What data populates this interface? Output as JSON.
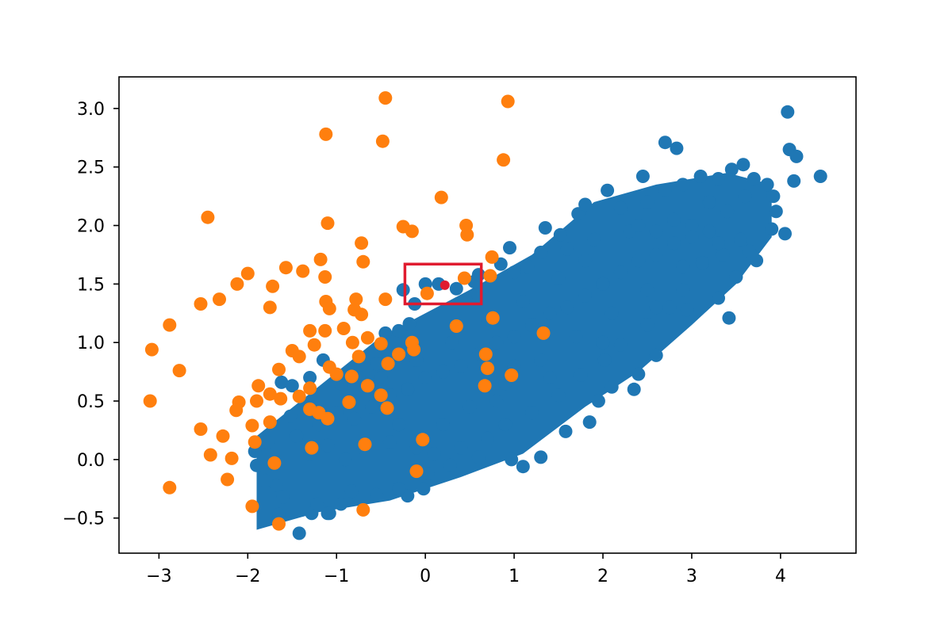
{
  "chart_data": {
    "type": "scatter",
    "title": "",
    "xlabel": "",
    "ylabel": "",
    "xlim": [
      -3.45,
      4.85
    ],
    "ylim": [
      -0.8,
      3.27
    ],
    "xticks": [
      -3,
      -2,
      -1,
      0,
      1,
      2,
      3,
      4
    ],
    "xtick_labels": [
      "−3",
      "−2",
      "−1",
      "0",
      "1",
      "2",
      "3",
      "4"
    ],
    "yticks": [
      -0.5,
      0.0,
      0.5,
      1.0,
      1.5,
      2.0,
      2.5,
      3.0
    ],
    "ytick_labels": [
      "−0.5",
      "0.0",
      "0.5",
      "1.0",
      "1.5",
      "2.0",
      "2.5",
      "3.0"
    ],
    "grid": false,
    "series": [
      {
        "color": "#1f77b4",
        "points": [
          [
            4.08,
            2.97
          ],
          [
            4.45,
            2.42
          ],
          [
            4.1,
            2.65
          ],
          [
            4.18,
            2.59
          ],
          [
            4.15,
            2.38
          ],
          [
            2.7,
            2.71
          ],
          [
            2.83,
            2.66
          ],
          [
            2.45,
            2.42
          ],
          [
            4.05,
            1.93
          ],
          [
            3.9,
            1.97
          ],
          [
            3.73,
            1.7
          ],
          [
            3.42,
            1.21
          ],
          [
            3.5,
            1.56
          ],
          [
            3.3,
            1.38
          ],
          [
            2.95,
            1.28
          ],
          [
            2.6,
            0.89
          ],
          [
            2.4,
            0.73
          ],
          [
            2.35,
            0.6
          ],
          [
            2.1,
            0.62
          ],
          [
            1.95,
            0.5
          ],
          [
            1.58,
            0.24
          ],
          [
            1.85,
            0.32
          ],
          [
            1.3,
            0.02
          ],
          [
            1.1,
            -0.06
          ],
          [
            0.97,
            0.0
          ],
          [
            0.6,
            0.02
          ],
          [
            0.28,
            -0.05
          ],
          [
            0.03,
            -0.12
          ],
          [
            -0.02,
            -0.25
          ],
          [
            -0.2,
            -0.31
          ],
          [
            -0.3,
            -0.25
          ],
          [
            -0.55,
            -0.3
          ],
          [
            -0.83,
            -0.27
          ],
          [
            -0.95,
            -0.38
          ],
          [
            -1.1,
            -0.46
          ],
          [
            -1.08,
            -0.46
          ],
          [
            -1.28,
            -0.46
          ],
          [
            -1.22,
            -0.38
          ],
          [
            -1.42,
            -0.63
          ],
          [
            -1.65,
            -0.47
          ],
          [
            -1.6,
            -0.32
          ],
          [
            -1.68,
            -0.22
          ],
          [
            -1.8,
            -0.18
          ],
          [
            -1.92,
            0.07
          ],
          [
            -1.9,
            -0.05
          ],
          [
            -1.78,
            0.15
          ],
          [
            -1.52,
            0.37
          ],
          [
            -1.62,
            0.66
          ],
          [
            -1.5,
            0.63
          ],
          [
            -1.15,
            0.85
          ],
          [
            -1.3,
            0.7
          ],
          [
            -0.95,
            0.65
          ],
          [
            -0.75,
            0.7
          ],
          [
            -0.55,
            0.82
          ],
          [
            -0.45,
            1.08
          ],
          [
            -0.3,
            1.1
          ],
          [
            -0.18,
            1.16
          ],
          [
            -0.12,
            1.33
          ],
          [
            -0.25,
            1.45
          ],
          [
            0.0,
            1.5
          ],
          [
            0.15,
            1.5
          ],
          [
            0.35,
            1.46
          ],
          [
            0.55,
            1.52
          ],
          [
            0.6,
            1.58
          ],
          [
            0.85,
            1.67
          ],
          [
            0.95,
            1.81
          ],
          [
            1.15,
            1.65
          ],
          [
            1.3,
            1.77
          ],
          [
            1.35,
            1.98
          ],
          [
            1.52,
            1.92
          ],
          [
            1.72,
            2.1
          ],
          [
            1.8,
            2.18
          ],
          [
            2.05,
            2.3
          ],
          [
            2.2,
            2.15
          ],
          [
            2.5,
            2.2
          ],
          [
            2.7,
            2.3
          ],
          [
            2.9,
            2.35
          ],
          [
            3.1,
            2.42
          ],
          [
            3.3,
            2.4
          ],
          [
            3.45,
            2.48
          ],
          [
            3.58,
            2.52
          ],
          [
            3.7,
            2.4
          ],
          [
            3.85,
            2.35
          ],
          [
            3.92,
            2.25
          ],
          [
            3.95,
            2.12
          ],
          [
            3.6,
            2.25
          ],
          [
            3.4,
            2.12
          ],
          [
            3.2,
            2.2
          ],
          [
            3.0,
            2.0
          ],
          [
            2.8,
            2.05
          ],
          [
            2.6,
            1.95
          ],
          [
            3.55,
            1.88
          ],
          [
            3.65,
            1.78
          ],
          [
            3.35,
            1.75
          ],
          [
            3.12,
            1.68
          ],
          [
            2.9,
            1.45
          ],
          [
            2.75,
            1.3
          ],
          [
            2.5,
            1.15
          ],
          [
            2.2,
            0.98
          ],
          [
            2.02,
            0.85
          ],
          [
            1.75,
            0.72
          ],
          [
            1.5,
            0.55
          ],
          [
            1.2,
            0.4
          ],
          [
            0.9,
            0.3
          ],
          [
            0.7,
            0.18
          ],
          [
            0.4,
            0.1
          ],
          [
            0.1,
            0.05
          ],
          [
            -0.1,
            0.1
          ],
          [
            -0.4,
            0.15
          ],
          [
            -0.7,
            0.1
          ],
          [
            -0.9,
            0.0
          ],
          [
            -1.1,
            0.12
          ],
          [
            -1.3,
            0.05
          ],
          [
            -1.45,
            0.2
          ],
          [
            -1.2,
            0.3
          ],
          [
            -1.0,
            0.4
          ],
          [
            -0.8,
            0.35
          ],
          [
            -0.6,
            0.45
          ],
          [
            -0.4,
            0.55
          ],
          [
            -0.2,
            0.6
          ],
          [
            0.0,
            0.7
          ],
          [
            0.2,
            0.75
          ],
          [
            0.4,
            0.8
          ],
          [
            0.6,
            0.9
          ],
          [
            0.8,
            1.0
          ],
          [
            1.0,
            1.05
          ],
          [
            1.2,
            1.15
          ],
          [
            1.4,
            1.25
          ],
          [
            1.6,
            1.3
          ],
          [
            1.8,
            1.4
          ],
          [
            2.0,
            1.5
          ],
          [
            2.2,
            1.6
          ],
          [
            2.4,
            1.7
          ],
          [
            2.6,
            1.75
          ],
          [
            2.8,
            1.85
          ],
          [
            3.0,
            1.9
          ],
          [
            3.2,
            1.95
          ],
          [
            1.9,
            1.88
          ],
          [
            2.3,
            1.95
          ],
          [
            1.5,
            1.55
          ],
          [
            1.1,
            1.35
          ],
          [
            0.7,
            1.2
          ],
          [
            0.3,
            1.0
          ],
          [
            -0.1,
            0.85
          ],
          [
            -0.5,
            0.7
          ],
          [
            0.5,
            0.45
          ],
          [
            0.9,
            0.65
          ],
          [
            1.3,
            0.85
          ],
          [
            1.7,
            1.05
          ],
          [
            2.1,
            1.25
          ],
          [
            2.5,
            1.45
          ],
          [
            2.9,
            1.65
          ],
          [
            3.3,
            1.85
          ],
          [
            0.2,
            0.3
          ],
          [
            -0.3,
            0.3
          ],
          [
            0.8,
            0.5
          ],
          [
            1.4,
            0.7
          ],
          [
            2.0,
            1.0
          ],
          [
            2.6,
            1.3
          ],
          [
            1.0,
            0.8
          ],
          [
            1.8,
            1.7
          ],
          [
            2.4,
            2.0
          ],
          [
            0.6,
            1.4
          ],
          [
            1.0,
            1.6
          ],
          [
            1.6,
            1.8
          ]
        ]
      },
      {
        "color": "#ff7f0e",
        "points": [
          [
            -0.45,
            3.09
          ],
          [
            0.93,
            3.06
          ],
          [
            -1.12,
            2.78
          ],
          [
            -0.48,
            2.72
          ],
          [
            0.88,
            2.56
          ],
          [
            0.18,
            2.24
          ],
          [
            -2.45,
            2.07
          ],
          [
            -1.1,
            2.02
          ],
          [
            -0.25,
            1.99
          ],
          [
            -0.15,
            1.95
          ],
          [
            0.46,
            2.0
          ],
          [
            0.47,
            1.92
          ],
          [
            -0.72,
            1.85
          ],
          [
            -2.0,
            1.59
          ],
          [
            -2.12,
            1.5
          ],
          [
            -1.57,
            1.64
          ],
          [
            -1.38,
            1.61
          ],
          [
            -1.18,
            1.71
          ],
          [
            -1.13,
            1.56
          ],
          [
            -1.72,
            1.48
          ],
          [
            -0.7,
            1.69
          ],
          [
            -2.32,
            1.37
          ],
          [
            -2.53,
            1.33
          ],
          [
            -1.75,
            1.3
          ],
          [
            -0.78,
            1.37
          ],
          [
            -1.12,
            1.35
          ],
          [
            -1.08,
            1.29
          ],
          [
            -0.8,
            1.28
          ],
          [
            -0.72,
            1.24
          ],
          [
            -0.45,
            1.37
          ],
          [
            0.02,
            1.42
          ],
          [
            0.44,
            1.55
          ],
          [
            0.73,
            1.57
          ],
          [
            0.75,
            1.73
          ],
          [
            0.76,
            1.21
          ],
          [
            -2.88,
            1.15
          ],
          [
            -3.08,
            0.94
          ],
          [
            -2.77,
            0.76
          ],
          [
            -3.1,
            0.5
          ],
          [
            -1.3,
            1.1
          ],
          [
            -1.13,
            1.1
          ],
          [
            -0.92,
            1.12
          ],
          [
            -1.25,
            0.98
          ],
          [
            -1.5,
            0.93
          ],
          [
            -1.42,
            0.88
          ],
          [
            -0.82,
            1.0
          ],
          [
            -0.75,
            0.88
          ],
          [
            -0.65,
            1.04
          ],
          [
            -0.5,
            0.99
          ],
          [
            -0.3,
            0.9
          ],
          [
            -0.15,
            1.0
          ],
          [
            -0.13,
            0.94
          ],
          [
            0.35,
            1.14
          ],
          [
            -0.42,
            0.82
          ],
          [
            -1.65,
            0.77
          ],
          [
            -1.08,
            0.79
          ],
          [
            -1.0,
            0.73
          ],
          [
            -0.83,
            0.71
          ],
          [
            -0.65,
            0.63
          ],
          [
            -1.88,
            0.63
          ],
          [
            -1.75,
            0.56
          ],
          [
            -1.63,
            0.52
          ],
          [
            -1.9,
            0.5
          ],
          [
            -2.1,
            0.49
          ],
          [
            -2.13,
            0.42
          ],
          [
            -1.3,
            0.61
          ],
          [
            -1.42,
            0.54
          ],
          [
            -0.86,
            0.49
          ],
          [
            -0.5,
            0.55
          ],
          [
            -0.43,
            0.44
          ],
          [
            -1.3,
            0.43
          ],
          [
            -1.2,
            0.4
          ],
          [
            -1.1,
            0.35
          ],
          [
            -1.75,
            0.32
          ],
          [
            -1.95,
            0.29
          ],
          [
            -1.92,
            0.15
          ],
          [
            -2.53,
            0.26
          ],
          [
            -2.28,
            0.2
          ],
          [
            -2.42,
            0.04
          ],
          [
            -2.18,
            0.01
          ],
          [
            -1.28,
            0.1
          ],
          [
            -1.7,
            -0.03
          ],
          [
            -2.23,
            -0.17
          ],
          [
            -2.88,
            -0.24
          ],
          [
            -1.95,
            -0.4
          ],
          [
            -1.65,
            -0.55
          ],
          [
            -0.7,
            -0.43
          ],
          [
            -0.68,
            0.13
          ],
          [
            -0.03,
            0.17
          ],
          [
            -0.1,
            -0.1
          ],
          [
            0.68,
            0.9
          ],
          [
            0.7,
            0.78
          ],
          [
            0.67,
            0.63
          ],
          [
            0.97,
            0.72
          ],
          [
            1.33,
            1.08
          ]
        ]
      }
    ],
    "highlight": {
      "color": "#e01b2f",
      "point": [
        0.22,
        1.49
      ],
      "box_x": [
        -0.23,
        0.63
      ],
      "box_y": [
        1.33,
        1.67
      ]
    }
  }
}
